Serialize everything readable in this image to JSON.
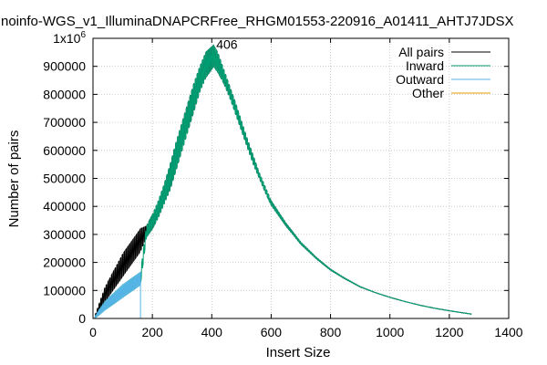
{
  "chart_data": {
    "type": "line",
    "title": "noinfo-WGS_v1_IlluminaDNAPCRFree_RHGM01553-220916_A01411_AHTJ7JDSX",
    "xlabel": "Insert Size",
    "ylabel": "Number of pairs",
    "xlim": [
      0,
      1400
    ],
    "ylim": [
      0,
      1000000
    ],
    "x_ticks": [
      0,
      200,
      400,
      600,
      800,
      1000,
      1200,
      1400
    ],
    "y_ticks": [
      0,
      100000,
      200000,
      300000,
      400000,
      500000,
      600000,
      700000,
      800000,
      900000,
      1000000
    ],
    "y_tick_labels": [
      "0",
      "100000",
      "200000",
      "300000",
      "400000",
      "500000",
      "600000",
      "700000",
      "800000",
      "900000"
    ],
    "y_top_label": {
      "base": "1x10",
      "exponent": "6"
    },
    "grid": true,
    "legend_position": "top-right",
    "annotations": [
      {
        "text": "406",
        "x": 406,
        "y": 975000
      }
    ],
    "series": [
      {
        "name": "All pairs",
        "color": "#000000",
        "x": [
          5,
          20,
          40,
          60,
          80,
          100,
          120,
          140,
          160,
          180,
          200,
          220,
          240,
          260,
          280,
          300,
          320,
          340,
          360,
          380,
          400,
          406,
          420,
          440,
          460,
          480,
          500,
          520,
          540,
          560,
          580,
          600,
          650,
          700,
          750,
          800,
          850,
          900,
          950,
          1000,
          1050,
          1100,
          1150,
          1200,
          1250,
          1275
        ],
        "low": [
          0,
          20000,
          60000,
          90000,
          120000,
          150000,
          180000,
          210000,
          240000,
          290000,
          320000,
          360000,
          410000,
          460000,
          530000,
          600000,
          670000,
          740000,
          810000,
          860000,
          890000,
          900000,
          880000,
          840000,
          790000,
          730000,
          670000,
          610000,
          550000,
          500000,
          450000,
          405000,
          330000,
          265000,
          215000,
          172000,
          140000,
          112000,
          92000,
          75000,
          60000,
          47000,
          36000,
          27000,
          19000,
          15000
        ],
        "high": [
          5000,
          50000,
          110000,
          150000,
          190000,
          230000,
          260000,
          290000,
          320000,
          330000,
          370000,
          420000,
          480000,
          550000,
          630000,
          700000,
          770000,
          840000,
          900000,
          950000,
          970000,
          975000,
          950000,
          890000,
          830000,
          770000,
          705000,
          640000,
          580000,
          520000,
          470000,
          420000,
          340000,
          272000,
          220000,
          176000,
          143000,
          114000,
          93000,
          76000,
          61000,
          48000,
          37000,
          28000,
          20000,
          16000
        ]
      },
      {
        "name": "Inward",
        "color": "#009e73",
        "x": [
          5,
          20,
          40,
          60,
          80,
          100,
          120,
          140,
          160,
          180,
          200,
          220,
          240,
          260,
          280,
          300,
          320,
          340,
          360,
          380,
          400,
          406,
          420,
          440,
          460,
          480,
          500,
          520,
          540,
          560,
          580,
          600,
          650,
          700,
          750,
          800,
          850,
          900,
          950,
          1000,
          1050,
          1100,
          1150,
          1200,
          1250,
          1275
        ],
        "low": [
          0,
          12000,
          30000,
          45000,
          60000,
          75000,
          90000,
          105000,
          120000,
          290000,
          320000,
          360000,
          410000,
          460000,
          530000,
          600000,
          670000,
          740000,
          810000,
          860000,
          890000,
          900000,
          880000,
          840000,
          790000,
          730000,
          670000,
          610000,
          550000,
          500000,
          450000,
          405000,
          330000,
          265000,
          215000,
          172000,
          140000,
          112000,
          92000,
          75000,
          60000,
          47000,
          36000,
          27000,
          19000,
          15000
        ],
        "high": [
          3000,
          30000,
          60000,
          80000,
          100000,
          120000,
          135000,
          150000,
          165000,
          330000,
          370000,
          420000,
          480000,
          550000,
          630000,
          700000,
          770000,
          840000,
          900000,
          950000,
          970000,
          975000,
          950000,
          890000,
          830000,
          770000,
          705000,
          640000,
          580000,
          520000,
          470000,
          420000,
          340000,
          272000,
          220000,
          176000,
          143000,
          114000,
          93000,
          76000,
          61000,
          48000,
          37000,
          28000,
          20000,
          16000
        ]
      },
      {
        "name": "Outward",
        "color": "#56b4e9",
        "x": [
          5,
          20,
          40,
          60,
          80,
          100,
          120,
          140,
          160
        ],
        "low": [
          0,
          12000,
          30000,
          45000,
          60000,
          75000,
          90000,
          105000,
          120000
        ],
        "high": [
          3000,
          30000,
          60000,
          80000,
          100000,
          120000,
          135000,
          150000,
          165000
        ],
        "drop_x": 160
      },
      {
        "name": "Other",
        "color": "#e69f00",
        "x": [],
        "low": [],
        "high": []
      }
    ]
  }
}
